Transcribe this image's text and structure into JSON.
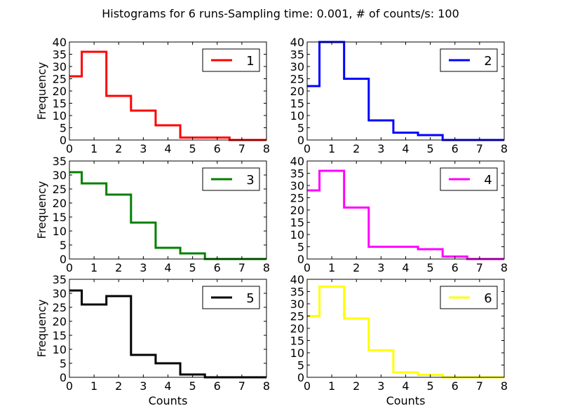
{
  "figure": {
    "title": "Histograms for 6 runs-Sampling time: 0.001, # of counts/s: 100"
  },
  "chart_data": [
    {
      "type": "line",
      "drawstyle": "steps-mid",
      "xlabel": "",
      "ylabel": "Frequency",
      "xlim": [
        0,
        8
      ],
      "ylim": [
        0,
        40
      ],
      "xticks": [
        "0",
        "1",
        "2",
        "3",
        "4",
        "5",
        "6",
        "7",
        "8"
      ],
      "yticks": [
        "0",
        "5",
        "10",
        "15",
        "20",
        "25",
        "30",
        "35",
        "40"
      ],
      "legend_position": "upper right",
      "series": [
        {
          "name": "1",
          "color": "#ff0000",
          "x": [
            0,
            1,
            2,
            3,
            4,
            5,
            6,
            7,
            8
          ],
          "y": [
            26,
            36,
            18,
            12,
            6,
            1,
            1,
            0,
            0
          ]
        }
      ]
    },
    {
      "type": "line",
      "drawstyle": "steps-mid",
      "xlabel": "",
      "ylabel": "",
      "xlim": [
        0,
        8
      ],
      "ylim": [
        0,
        40
      ],
      "xticks": [
        "0",
        "1",
        "2",
        "3",
        "4",
        "5",
        "6",
        "7",
        "8"
      ],
      "yticks": [
        "0",
        "5",
        "10",
        "15",
        "20",
        "25",
        "30",
        "35",
        "40"
      ],
      "legend_position": "upper right",
      "series": [
        {
          "name": "2",
          "color": "#0000ff",
          "x": [
            0,
            1,
            2,
            3,
            4,
            5,
            6,
            7,
            8
          ],
          "y": [
            22,
            40,
            25,
            8,
            3,
            2,
            0,
            0,
            0
          ]
        }
      ]
    },
    {
      "type": "line",
      "drawstyle": "steps-mid",
      "xlabel": "",
      "ylabel": "Frequency",
      "xlim": [
        0,
        8
      ],
      "ylim": [
        0,
        35
      ],
      "xticks": [
        "0",
        "1",
        "2",
        "3",
        "4",
        "5",
        "6",
        "7",
        "8"
      ],
      "yticks": [
        "0",
        "5",
        "10",
        "15",
        "20",
        "25",
        "30",
        "35"
      ],
      "legend_position": "upper right",
      "series": [
        {
          "name": "3",
          "color": "#008000",
          "x": [
            0,
            1,
            2,
            3,
            4,
            5,
            6,
            7,
            8
          ],
          "y": [
            31,
            27,
            23,
            13,
            4,
            2,
            0,
            0,
            0
          ]
        }
      ]
    },
    {
      "type": "line",
      "drawstyle": "steps-mid",
      "xlabel": "",
      "ylabel": "",
      "xlim": [
        0,
        8
      ],
      "ylim": [
        0,
        40
      ],
      "xticks": [
        "0",
        "1",
        "2",
        "3",
        "4",
        "5",
        "6",
        "7",
        "8"
      ],
      "yticks": [
        "0",
        "5",
        "10",
        "15",
        "20",
        "25",
        "30",
        "35",
        "40"
      ],
      "legend_position": "upper right",
      "series": [
        {
          "name": "4",
          "color": "#ff00ff",
          "x": [
            0,
            1,
            2,
            3,
            4,
            5,
            6,
            7,
            8
          ],
          "y": [
            28,
            36,
            21,
            5,
            5,
            4,
            1,
            0,
            0
          ]
        }
      ]
    },
    {
      "type": "line",
      "drawstyle": "steps-mid",
      "xlabel": "Counts",
      "ylabel": "Frequency",
      "xlim": [
        0,
        8
      ],
      "ylim": [
        0,
        35
      ],
      "xticks": [
        "0",
        "1",
        "2",
        "3",
        "4",
        "5",
        "6",
        "7",
        "8"
      ],
      "yticks": [
        "0",
        "5",
        "10",
        "15",
        "20",
        "25",
        "30",
        "35"
      ],
      "legend_position": "upper right",
      "series": [
        {
          "name": "5",
          "color": "#000000",
          "x": [
            0,
            1,
            2,
            3,
            4,
            5,
            6,
            7,
            8
          ],
          "y": [
            31,
            26,
            29,
            8,
            5,
            1,
            0,
            0,
            0
          ]
        }
      ]
    },
    {
      "type": "line",
      "drawstyle": "steps-mid",
      "xlabel": "Counts",
      "ylabel": "",
      "xlim": [
        0,
        8
      ],
      "ylim": [
        0,
        40
      ],
      "xticks": [
        "0",
        "1",
        "2",
        "3",
        "4",
        "5",
        "6",
        "7",
        "8"
      ],
      "yticks": [
        "0",
        "5",
        "10",
        "15",
        "20",
        "25",
        "30",
        "35",
        "40"
      ],
      "legend_position": "upper right",
      "series": [
        {
          "name": "6",
          "color": "#ffff00",
          "x": [
            0,
            1,
            2,
            3,
            4,
            5,
            6,
            7,
            8
          ],
          "y": [
            25,
            37,
            24,
            11,
            2,
            1,
            0,
            0,
            0
          ]
        }
      ]
    }
  ]
}
